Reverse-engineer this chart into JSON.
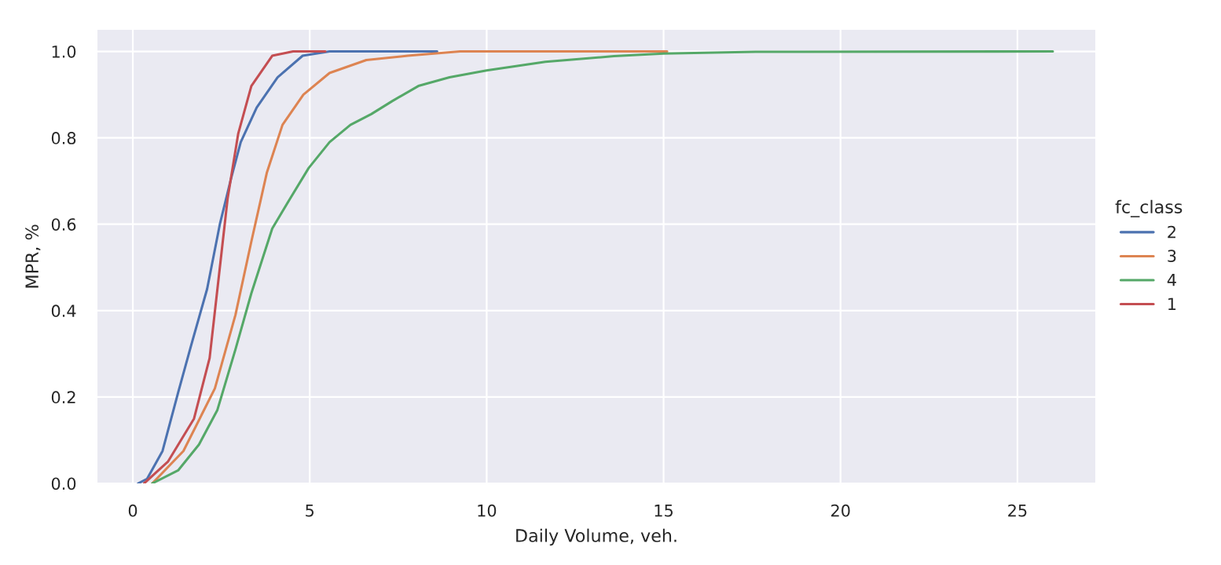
{
  "chart_data": {
    "type": "line",
    "xlabel": "Daily Volume, veh.",
    "ylabel": "MPR, %",
    "legend_title": "fc_class",
    "legend": "right",
    "grid": true,
    "xlim": [
      -1,
      27.2
    ],
    "xticks": [
      0,
      5,
      10,
      15,
      20,
      25
    ],
    "ylim": [
      0,
      1.05
    ],
    "yticks": [
      {
        "value": 0,
        "label": "0.0"
      },
      0.2,
      0.4,
      0.6,
      0.8,
      {
        "value": 1,
        "label": "1.0"
      }
    ],
    "series": [
      {
        "name": "2",
        "color": "#4c72b0",
        "x": [
          0.15,
          0.4,
          0.84,
          1.28,
          1.65,
          2.1,
          2.46,
          2.79,
          3.05,
          3.5,
          4.09,
          4.8,
          5.56,
          8.6
        ],
        "values": [
          0,
          0.01,
          0.075,
          0.21,
          0.32,
          0.45,
          0.6,
          0.71,
          0.79,
          0.87,
          0.94,
          0.99,
          1.0,
          1.0
        ]
      },
      {
        "name": "3",
        "color": "#dd8452",
        "x": [
          0.55,
          1.43,
          2.32,
          2.9,
          3.35,
          3.79,
          4.23,
          4.82,
          5.56,
          6.6,
          7.77,
          9.25,
          15.1
        ],
        "values": [
          0,
          0.075,
          0.22,
          0.39,
          0.56,
          0.72,
          0.83,
          0.9,
          0.95,
          0.98,
          0.99,
          1.0,
          1.0
        ]
      },
      {
        "name": "4",
        "color": "#55a868",
        "x": [
          0.55,
          1.28,
          1.87,
          2.39,
          2.9,
          3.35,
          3.94,
          4.45,
          4.97,
          5.56,
          6.15,
          6.74,
          7.33,
          8.07,
          8.95,
          10.0,
          11.66,
          13.6,
          15.0,
          17.6,
          26.0
        ],
        "values": [
          0,
          0.03,
          0.09,
          0.17,
          0.31,
          0.44,
          0.59,
          0.66,
          0.73,
          0.79,
          0.83,
          0.855,
          0.885,
          0.92,
          0.94,
          0.956,
          0.976,
          0.989,
          0.995,
          0.999,
          1.0
        ]
      },
      {
        "name": "1",
        "color": "#c44e52",
        "x": [
          0.32,
          0.99,
          1.73,
          2.17,
          2.46,
          2.68,
          2.98,
          3.35,
          3.94,
          4.53,
          5.44
        ],
        "values": [
          0,
          0.05,
          0.15,
          0.29,
          0.5,
          0.66,
          0.81,
          0.92,
          0.99,
          1.0,
          1.0
        ]
      }
    ]
  }
}
